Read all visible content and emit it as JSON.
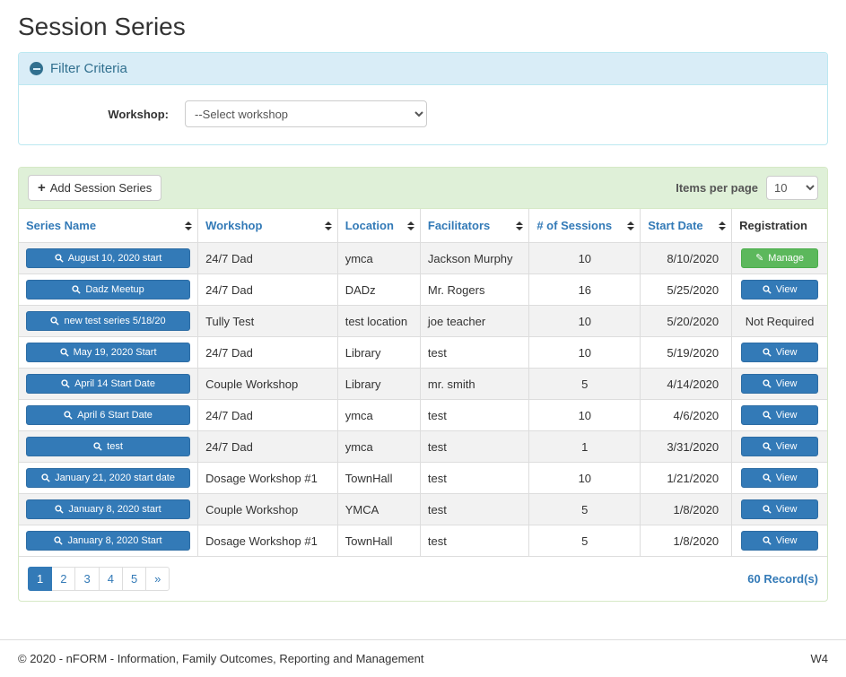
{
  "page": {
    "title": "Session Series",
    "footer": {
      "copyright": "© 2020 - nFORM - Information, Family Outcomes, Reporting and Management",
      "version": "W4"
    }
  },
  "filter": {
    "title": "Filter Criteria",
    "workshop_label": "Workshop:",
    "workshop_placeholder": "--Select workshop"
  },
  "toolbar": {
    "add_button": "Add Session Series",
    "items_per_page_label": "Items per page",
    "items_per_page_value": "10"
  },
  "table": {
    "columns": [
      {
        "label": "Series Name",
        "sortable": true
      },
      {
        "label": "Workshop",
        "sortable": true
      },
      {
        "label": "Location",
        "sortable": true
      },
      {
        "label": "Facilitators",
        "sortable": true
      },
      {
        "label": "# of Sessions",
        "sortable": true
      },
      {
        "label": "Start Date",
        "sortable": true
      },
      {
        "label": "Registration",
        "sortable": false
      }
    ],
    "rows": [
      {
        "series": "August 10, 2020 start",
        "workshop": "24/7 Dad",
        "location": "ymca",
        "facilitators": "Jackson Murphy",
        "sessions": "10",
        "start_date": "8/10/2020",
        "registration": {
          "type": "manage",
          "label": "Manage"
        }
      },
      {
        "series": "Dadz Meetup",
        "workshop": "24/7 Dad",
        "location": "DADz",
        "facilitators": "Mr. Rogers",
        "sessions": "16",
        "start_date": "5/25/2020",
        "registration": {
          "type": "view",
          "label": "View"
        }
      },
      {
        "series": "new test series 5/18/20",
        "workshop": "Tully Test",
        "location": "test location",
        "facilitators": "joe teacher",
        "sessions": "10",
        "start_date": "5/20/2020",
        "registration": {
          "type": "text",
          "label": "Not Required"
        }
      },
      {
        "series": "May 19, 2020 Start",
        "workshop": "24/7 Dad",
        "location": "Library",
        "facilitators": "test",
        "sessions": "10",
        "start_date": "5/19/2020",
        "registration": {
          "type": "view",
          "label": "View"
        }
      },
      {
        "series": "April 14 Start Date",
        "workshop": "Couple Workshop",
        "location": "Library",
        "facilitators": "mr. smith",
        "sessions": "5",
        "start_date": "4/14/2020",
        "registration": {
          "type": "view",
          "label": "View"
        }
      },
      {
        "series": "April 6 Start Date",
        "workshop": "24/7 Dad",
        "location": "ymca",
        "facilitators": "test",
        "sessions": "10",
        "start_date": "4/6/2020",
        "registration": {
          "type": "view",
          "label": "View"
        }
      },
      {
        "series": "test",
        "workshop": "24/7 Dad",
        "location": "ymca",
        "facilitators": "test",
        "sessions": "1",
        "start_date": "3/31/2020",
        "registration": {
          "type": "view",
          "label": "View"
        }
      },
      {
        "series": "January 21, 2020 start date",
        "workshop": "Dosage Workshop #1",
        "location": "TownHall",
        "facilitators": "test",
        "sessions": "10",
        "start_date": "1/21/2020",
        "registration": {
          "type": "view",
          "label": "View"
        }
      },
      {
        "series": "January 8, 2020 start",
        "workshop": "Couple Workshop",
        "location": "YMCA",
        "facilitators": "test",
        "sessions": "5",
        "start_date": "1/8/2020",
        "registration": {
          "type": "view",
          "label": "View"
        }
      },
      {
        "series": "January 8, 2020 Start",
        "workshop": "Dosage Workshop #1",
        "location": "TownHall",
        "facilitators": "test",
        "sessions": "5",
        "start_date": "1/8/2020",
        "registration": {
          "type": "view",
          "label": "View"
        }
      }
    ]
  },
  "pagination": {
    "pages": [
      "1",
      "2",
      "3",
      "4",
      "5",
      "»"
    ],
    "active": "1",
    "records": "60 Record(s)"
  },
  "colors": {
    "primary_blue": "#337ab7",
    "success_green": "#5cb85c",
    "info_header_bg": "#d9edf7",
    "info_border": "#bce8f1",
    "info_text": "#31708f",
    "success_header_bg": "#dff0d8",
    "success_border": "#d6e9c6",
    "stripe_bg": "#f2f2f2"
  }
}
